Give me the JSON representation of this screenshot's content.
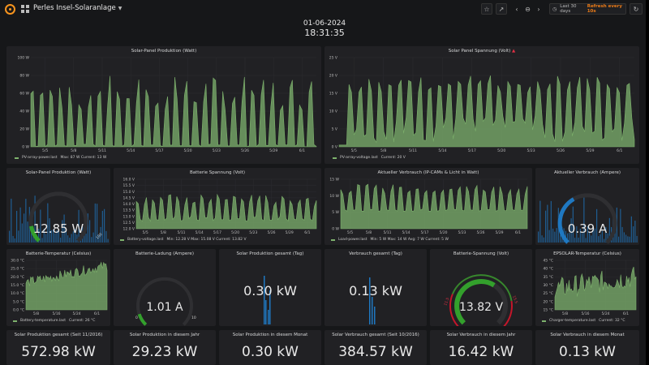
{
  "header": {
    "dashboard_title": "Perles Insel-Solaranlage",
    "date": "01-06-2024",
    "time": "18:31:35",
    "time_range": "Last 30 days",
    "refresh": "Refresh every 10s"
  },
  "colors": {
    "series": "#7eb26d",
    "gauge_bg": "#33a02c",
    "blue": "#1f78c1",
    "accent": "#eb7b18"
  },
  "panels": {
    "pv_power_big": {
      "title": "Solar-Panel Produktion (Watt)",
      "yticks": [
        "0 W",
        "20 W",
        "40 W",
        "60 W",
        "80 W",
        "100 W"
      ],
      "xticks": [
        "5/5",
        "5/8",
        "5/11",
        "5/14",
        "5/17",
        "5/20",
        "5/23",
        "5/26",
        "5/29",
        "6/1"
      ],
      "legend_series": "PV-array-power.last",
      "legend_stats": "Max: 87 W  Current: 13 W"
    },
    "pv_voltage_big": {
      "title": "Solar Panel Spannung (Volt)",
      "yticks": [
        "0 V",
        "5 V",
        "10 V",
        "15 V",
        "20 V",
        "25 V"
      ],
      "xticks": [
        "5/5",
        "5/8",
        "5/11",
        "5/14",
        "5/17",
        "5/20",
        "5/23",
        "5/26",
        "5/29",
        "6/1"
      ],
      "legend_series": "PV-array-voltage.last",
      "legend_stats": "Current: 20 V"
    },
    "pv_power_gauge": {
      "title": "Solar-Panel Produktion (Watt)",
      "value": "12.85 W",
      "fraction": 0.13,
      "max_label": "100"
    },
    "battery_voltage_chart": {
      "title": "Batterie Spannung (Volt)",
      "yticks": [
        "12.0 V",
        "12.5 V",
        "13.0 V",
        "13.5 V",
        "14.0 V",
        "14.5 V",
        "15.0 V",
        "15.5 V",
        "16.0 V"
      ],
      "xticks": [
        "5/5",
        "5/8",
        "5/11",
        "5/14",
        "5/17",
        "5/20",
        "5/23",
        "5/26",
        "5/29",
        "6/1"
      ],
      "legend_series": "Battery-voltage.last",
      "legend_stats": "Min: 12.28 V  Max: 15.08 V  Current: 13.82 V"
    },
    "load_power_chart": {
      "title": "Aktueller Verbrauch (IP-CAMs & Licht in Watt)",
      "yticks": [
        "0 W",
        "5 W",
        "10 W",
        "15 W"
      ],
      "xticks": [
        "5/5",
        "5/8",
        "5/11",
        "5/14",
        "5/17",
        "5/20",
        "5/23",
        "5/26",
        "5/29",
        "6/1"
      ],
      "legend_series": "Load-power.last",
      "legend_stats": "Min: 5 W  Max: 14 W  Avg: 7 W  Current: 5 W"
    },
    "load_current_gauge": {
      "title": "Aktueller Verbrauch (Ampere)",
      "value": "0.39 A",
      "fraction": 0.39
    },
    "battery_temp_chart": {
      "title": "Batterie-Temperatur (Celsius)",
      "yticks": [
        "0.0 °C",
        "5.0 °C",
        "10.0 °C",
        "15.0 °C",
        "20.0 °C",
        "25.0 °C",
        "30.0 °C"
      ],
      "xticks": [
        "5/8",
        "5/16",
        "5/24",
        "6/1"
      ],
      "legend_series": "Battery-temperature.last",
      "legend_stats": "Current: 26 °C"
    },
    "battery_charge_gauge": {
      "title": "Batterie-Ladung (Ampere)",
      "value": "1.01 A",
      "fraction": 0.1,
      "min_label": "0",
      "max_label": "10"
    },
    "solar_prod_day": {
      "title": "Solar Produktion gesamt (Tag)",
      "value": "0.30 kW"
    },
    "consumption_day": {
      "title": "Verbrauch gesamt (Tag)",
      "value": "0.13 kW"
    },
    "battery_voltage_gauge": {
      "title": "Batterie-Spannung (Volt)",
      "value": "13.82 V",
      "fraction": 0.62,
      "low_label": "11.5",
      "high_label": "15.5"
    },
    "epsolar_temp_chart": {
      "title": "EPSOLAR-Temperatur (Celsius)",
      "yticks": [
        "15 °C",
        "20 °C",
        "25 °C",
        "30 °C",
        "35 °C",
        "40 °C",
        "45 °C"
      ],
      "xticks": [
        "5/8",
        "5/16",
        "5/24",
        "6/1"
      ],
      "legend_series": "Charger-temperature.last",
      "legend_stats": "Current: 32 °C"
    },
    "stat_prod_since": {
      "title": "Solar Produktion gesamt (Seit 11/2016)",
      "value": "572.98 kW"
    },
    "stat_prod_year": {
      "title": "Solar Produktion in diesem Jahr",
      "value": "29.23 kW"
    },
    "stat_prod_month": {
      "title": "Solar Produktion in diesem Monat",
      "value": "0.30 kW"
    },
    "stat_cons_since": {
      "title": "Solar Verbrauch gesamt (Seit 10/2016)",
      "value": "384.57 kW"
    },
    "stat_cons_year": {
      "title": "Solar Verbrauch in diesem Jahr",
      "value": "16.42 kW"
    },
    "stat_cons_month": {
      "title": "Solar Verbrauch in diesem Monat",
      "value": "0.13 kW"
    }
  }
}
